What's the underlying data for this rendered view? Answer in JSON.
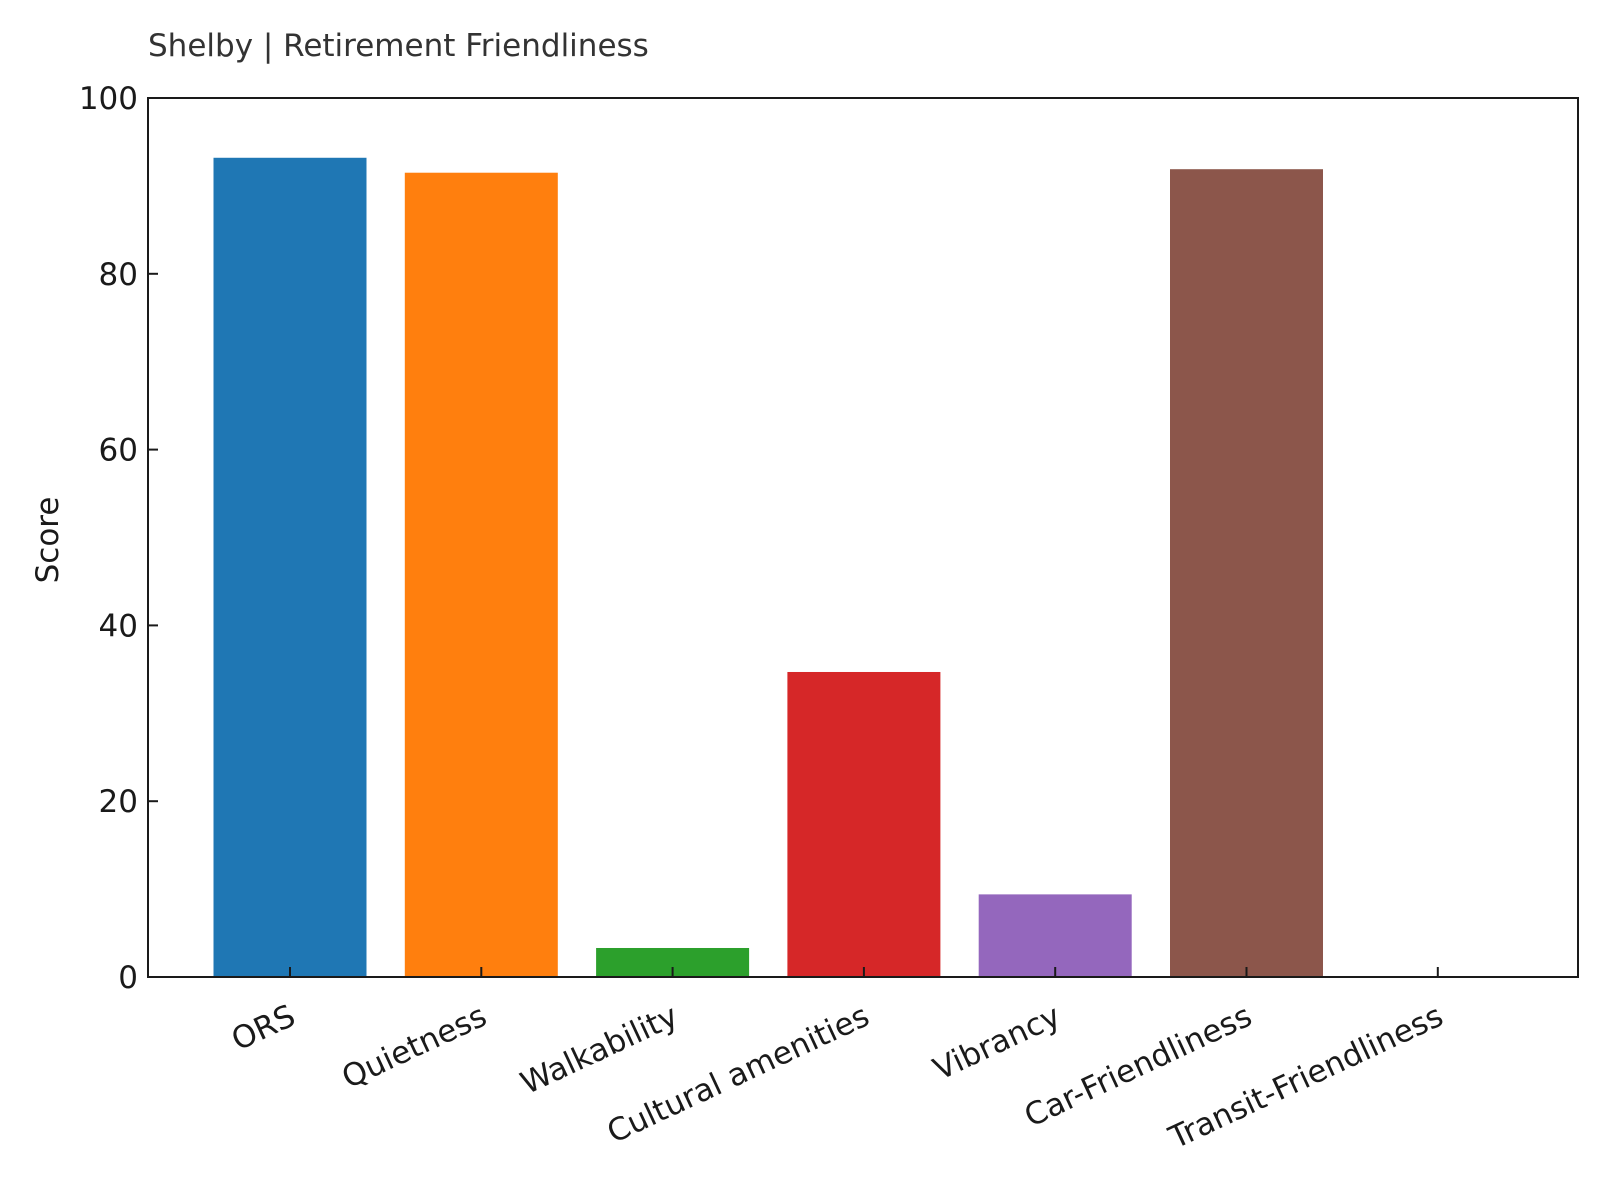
{
  "chart_data": {
    "type": "bar",
    "title": "Shelby | Retirement Friendliness",
    "xlabel": "",
    "ylabel": "Score",
    "ylim": [
      0,
      100
    ],
    "yticks": [
      0,
      20,
      40,
      60,
      80,
      100
    ],
    "grid": false,
    "categories": [
      "ORS",
      "Quietness",
      "Walkability",
      "Cultural amenities",
      "Vibrancy",
      "Car-Friendliness",
      "Transit-Friendliness"
    ],
    "values": [
      93.2,
      91.5,
      3.3,
      34.7,
      9.4,
      91.9,
      0
    ],
    "colors": [
      "#1f77b4",
      "#ff7f0e",
      "#2ca02c",
      "#d62728",
      "#9467bd",
      "#8c564b",
      "#e377c2"
    ]
  }
}
